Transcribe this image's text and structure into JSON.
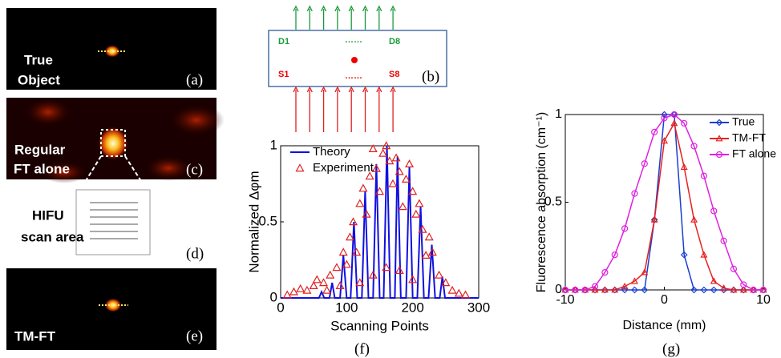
{
  "panels": {
    "a": {
      "label": "(a)",
      "text": [
        "True",
        "Object"
      ]
    },
    "b": {
      "label": "(b)",
      "detectors": [
        "D1",
        "D8"
      ],
      "sources": [
        "S1",
        "S8"
      ],
      "ellipsis": "……"
    },
    "c": {
      "label": "(c)",
      "text": [
        "Regular",
        "FT alone"
      ]
    },
    "d": {
      "label": "(d)",
      "text": [
        "HIFU",
        "scan area"
      ]
    },
    "e": {
      "label": "(e)",
      "text": [
        "TM-FT"
      ]
    },
    "f": {
      "label": "(f)"
    },
    "g": {
      "label": "(g)"
    }
  },
  "chart_data": [
    {
      "type": "line",
      "x_label": "Scanning Points",
      "y_label": "Normalized Δφm",
      "xlim": [
        0,
        300
      ],
      "ylim": [
        0,
        1
      ],
      "xticks": [
        0,
        100,
        200,
        300
      ],
      "yticks": [
        0,
        0.5,
        1
      ],
      "series": [
        {
          "name": "Theory",
          "color": "#1010e0",
          "line": true,
          "x": [
            0,
            58,
            62,
            66,
            74,
            78,
            82,
            90,
            95,
            100,
            106,
            111,
            116,
            123,
            128,
            133,
            140,
            145,
            150,
            156,
            161,
            166,
            173,
            177,
            182,
            190,
            195,
            200,
            207,
            212,
            217,
            224,
            229,
            234,
            241,
            245,
            249,
            300
          ],
          "values": [
            0,
            0,
            0.04,
            0,
            0,
            0.1,
            0,
            0,
            0.28,
            0,
            0,
            0.5,
            0,
            0,
            0.7,
            0,
            0,
            0.88,
            0,
            0,
            1.0,
            0,
            0,
            0.93,
            0,
            0,
            0.86,
            0,
            0,
            0.6,
            0,
            0,
            0.35,
            0,
            0,
            0.14,
            0,
            0
          ]
        },
        {
          "name": "Experiment",
          "color": "#e02020",
          "line": false,
          "marker": "triangle",
          "x": [
            10,
            20,
            30,
            40,
            50,
            55,
            65,
            75,
            85,
            95,
            100,
            105,
            110,
            115,
            120,
            125,
            130,
            135,
            140,
            145,
            150,
            155,
            160,
            165,
            170,
            175,
            180,
            185,
            190,
            195,
            200,
            205,
            210,
            215,
            220,
            225,
            230,
            240,
            250,
            260,
            270,
            280,
            120,
            140,
            160,
            180,
            200,
            90,
            70
          ],
          "values": [
            0.02,
            0.04,
            0.06,
            0.05,
            0.08,
            0.12,
            0.1,
            0.15,
            0.2,
            0.3,
            0.22,
            0.4,
            0.5,
            0.3,
            0.62,
            0.72,
            0.55,
            0.8,
            0.98,
            0.85,
            0.7,
            0.95,
            1.0,
            0.9,
            0.75,
            0.92,
            0.83,
            0.6,
            0.78,
            0.88,
            0.7,
            0.55,
            0.62,
            0.45,
            0.28,
            0.4,
            0.3,
            0.15,
            0.1,
            0.05,
            0.03,
            0.02,
            0.1,
            0.15,
            0.2,
            0.18,
            0.12,
            0.08,
            0.05
          ]
        }
      ]
    },
    {
      "type": "line",
      "x_label": "Distance (mm)",
      "y_label": "Fluorescence absorption (cm⁻¹)",
      "xlim": [
        -10,
        10
      ],
      "ylim": [
        0,
        1
      ],
      "xticks": [
        -10,
        0,
        10
      ],
      "yticks": [
        0,
        0.5,
        1
      ],
      "series": [
        {
          "name": "True",
          "color": "#1a3fd0",
          "line": true,
          "marker": "diamond",
          "x": [
            -10,
            -9,
            -8,
            -7,
            -6,
            -5,
            -4,
            -3,
            -2,
            -1,
            0,
            1,
            2,
            3,
            4,
            5,
            6,
            7,
            8,
            9,
            10
          ],
          "values": [
            0,
            0,
            0,
            0,
            0,
            0,
            0,
            0,
            0,
            0.4,
            1,
            1,
            0.2,
            0,
            0,
            0,
            0,
            0,
            0,
            0,
            0
          ]
        },
        {
          "name": "TM-FT",
          "color": "#e82020",
          "line": true,
          "marker": "triangle",
          "x": [
            -10,
            -9,
            -8,
            -7,
            -6,
            -5,
            -4,
            -3,
            -2,
            -1,
            0,
            1,
            2,
            3,
            4,
            5,
            6,
            7,
            8,
            9,
            10
          ],
          "values": [
            0,
            0,
            0,
            0,
            0,
            0,
            0.02,
            0.05,
            0.1,
            0.4,
            0.85,
            0.95,
            0.7,
            0.4,
            0.2,
            0.05,
            0.01,
            0,
            0,
            0,
            0
          ]
        },
        {
          "name": "FT alone",
          "color": "#e020e0",
          "line": true,
          "marker": "circle",
          "x": [
            -10,
            -9,
            -8,
            -7,
            -6,
            -5,
            -4,
            -3,
            -2,
            -1,
            0,
            1,
            2,
            3,
            4,
            5,
            6,
            7,
            8,
            9,
            10
          ],
          "values": [
            0,
            0,
            0,
            0.02,
            0.1,
            0.2,
            0.35,
            0.55,
            0.72,
            0.9,
            0.98,
            1,
            0.95,
            0.82,
            0.65,
            0.45,
            0.28,
            0.12,
            0.03,
            0,
            0
          ]
        }
      ]
    }
  ]
}
